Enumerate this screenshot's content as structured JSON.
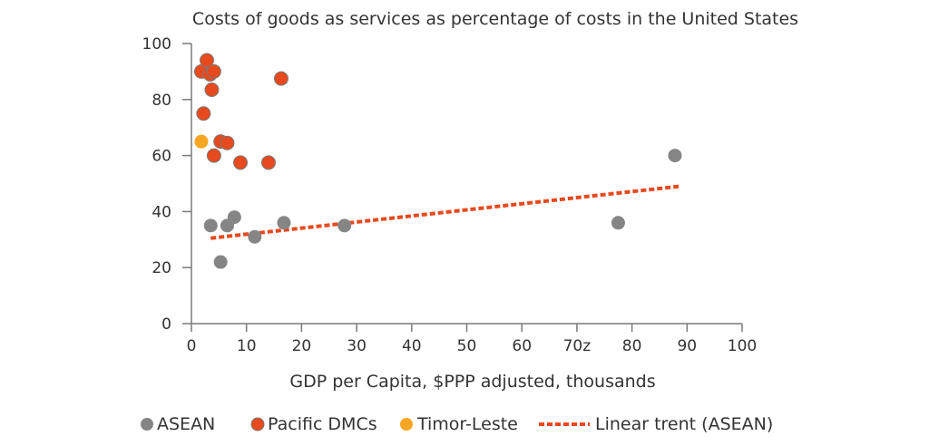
{
  "chart_data": {
    "type": "scatter",
    "title": "Costs of goods as services as percentage of costs in the United States",
    "xlabel": "GDP per Capita, $PPP adjusted, thousands",
    "ylabel": "",
    "xlim": [
      0,
      100
    ],
    "ylim": [
      0,
      100
    ],
    "x_ticks": [
      "0",
      "10",
      "20",
      "30",
      "40",
      "50",
      "60",
      "70z",
      "80",
      "90",
      "100"
    ],
    "y_ticks": [
      "0",
      "20",
      "40",
      "60",
      "80",
      "100"
    ],
    "grid": false,
    "legend_position": "bottom",
    "series": [
      {
        "name": "ASEAN",
        "color": "#858585",
        "points": [
          {
            "x": 3.5,
            "y": 35
          },
          {
            "x": 5.3,
            "y": 22
          },
          {
            "x": 6.5,
            "y": 35
          },
          {
            "x": 7.8,
            "y": 38
          },
          {
            "x": 11.5,
            "y": 31
          },
          {
            "x": 16.8,
            "y": 36
          },
          {
            "x": 27.8,
            "y": 35
          },
          {
            "x": 77.5,
            "y": 36
          },
          {
            "x": 87.8,
            "y": 60
          }
        ]
      },
      {
        "name": "Pacific DMCs",
        "color": "#e64a1e",
        "points": [
          {
            "x": 1.8,
            "y": 90
          },
          {
            "x": 2.8,
            "y": 94
          },
          {
            "x": 3.4,
            "y": 89
          },
          {
            "x": 4.1,
            "y": 90
          },
          {
            "x": 3.7,
            "y": 83.5
          },
          {
            "x": 2.2,
            "y": 75
          },
          {
            "x": 5.3,
            "y": 65
          },
          {
            "x": 6.5,
            "y": 64.5
          },
          {
            "x": 4.1,
            "y": 60
          },
          {
            "x": 8.9,
            "y": 57.5
          },
          {
            "x": 14.0,
            "y": 57.5
          },
          {
            "x": 16.3,
            "y": 87.5
          }
        ]
      },
      {
        "name": "Timor-Leste",
        "color": "#f6a623",
        "points": [
          {
            "x": 1.8,
            "y": 65
          }
        ]
      }
    ],
    "trendline": {
      "name": "Linear trent (ASEAN)",
      "color": "#e64a1e",
      "points": [
        {
          "x": 3.5,
          "y": 30.5
        },
        {
          "x": 88.5,
          "y": 49
        }
      ]
    }
  }
}
